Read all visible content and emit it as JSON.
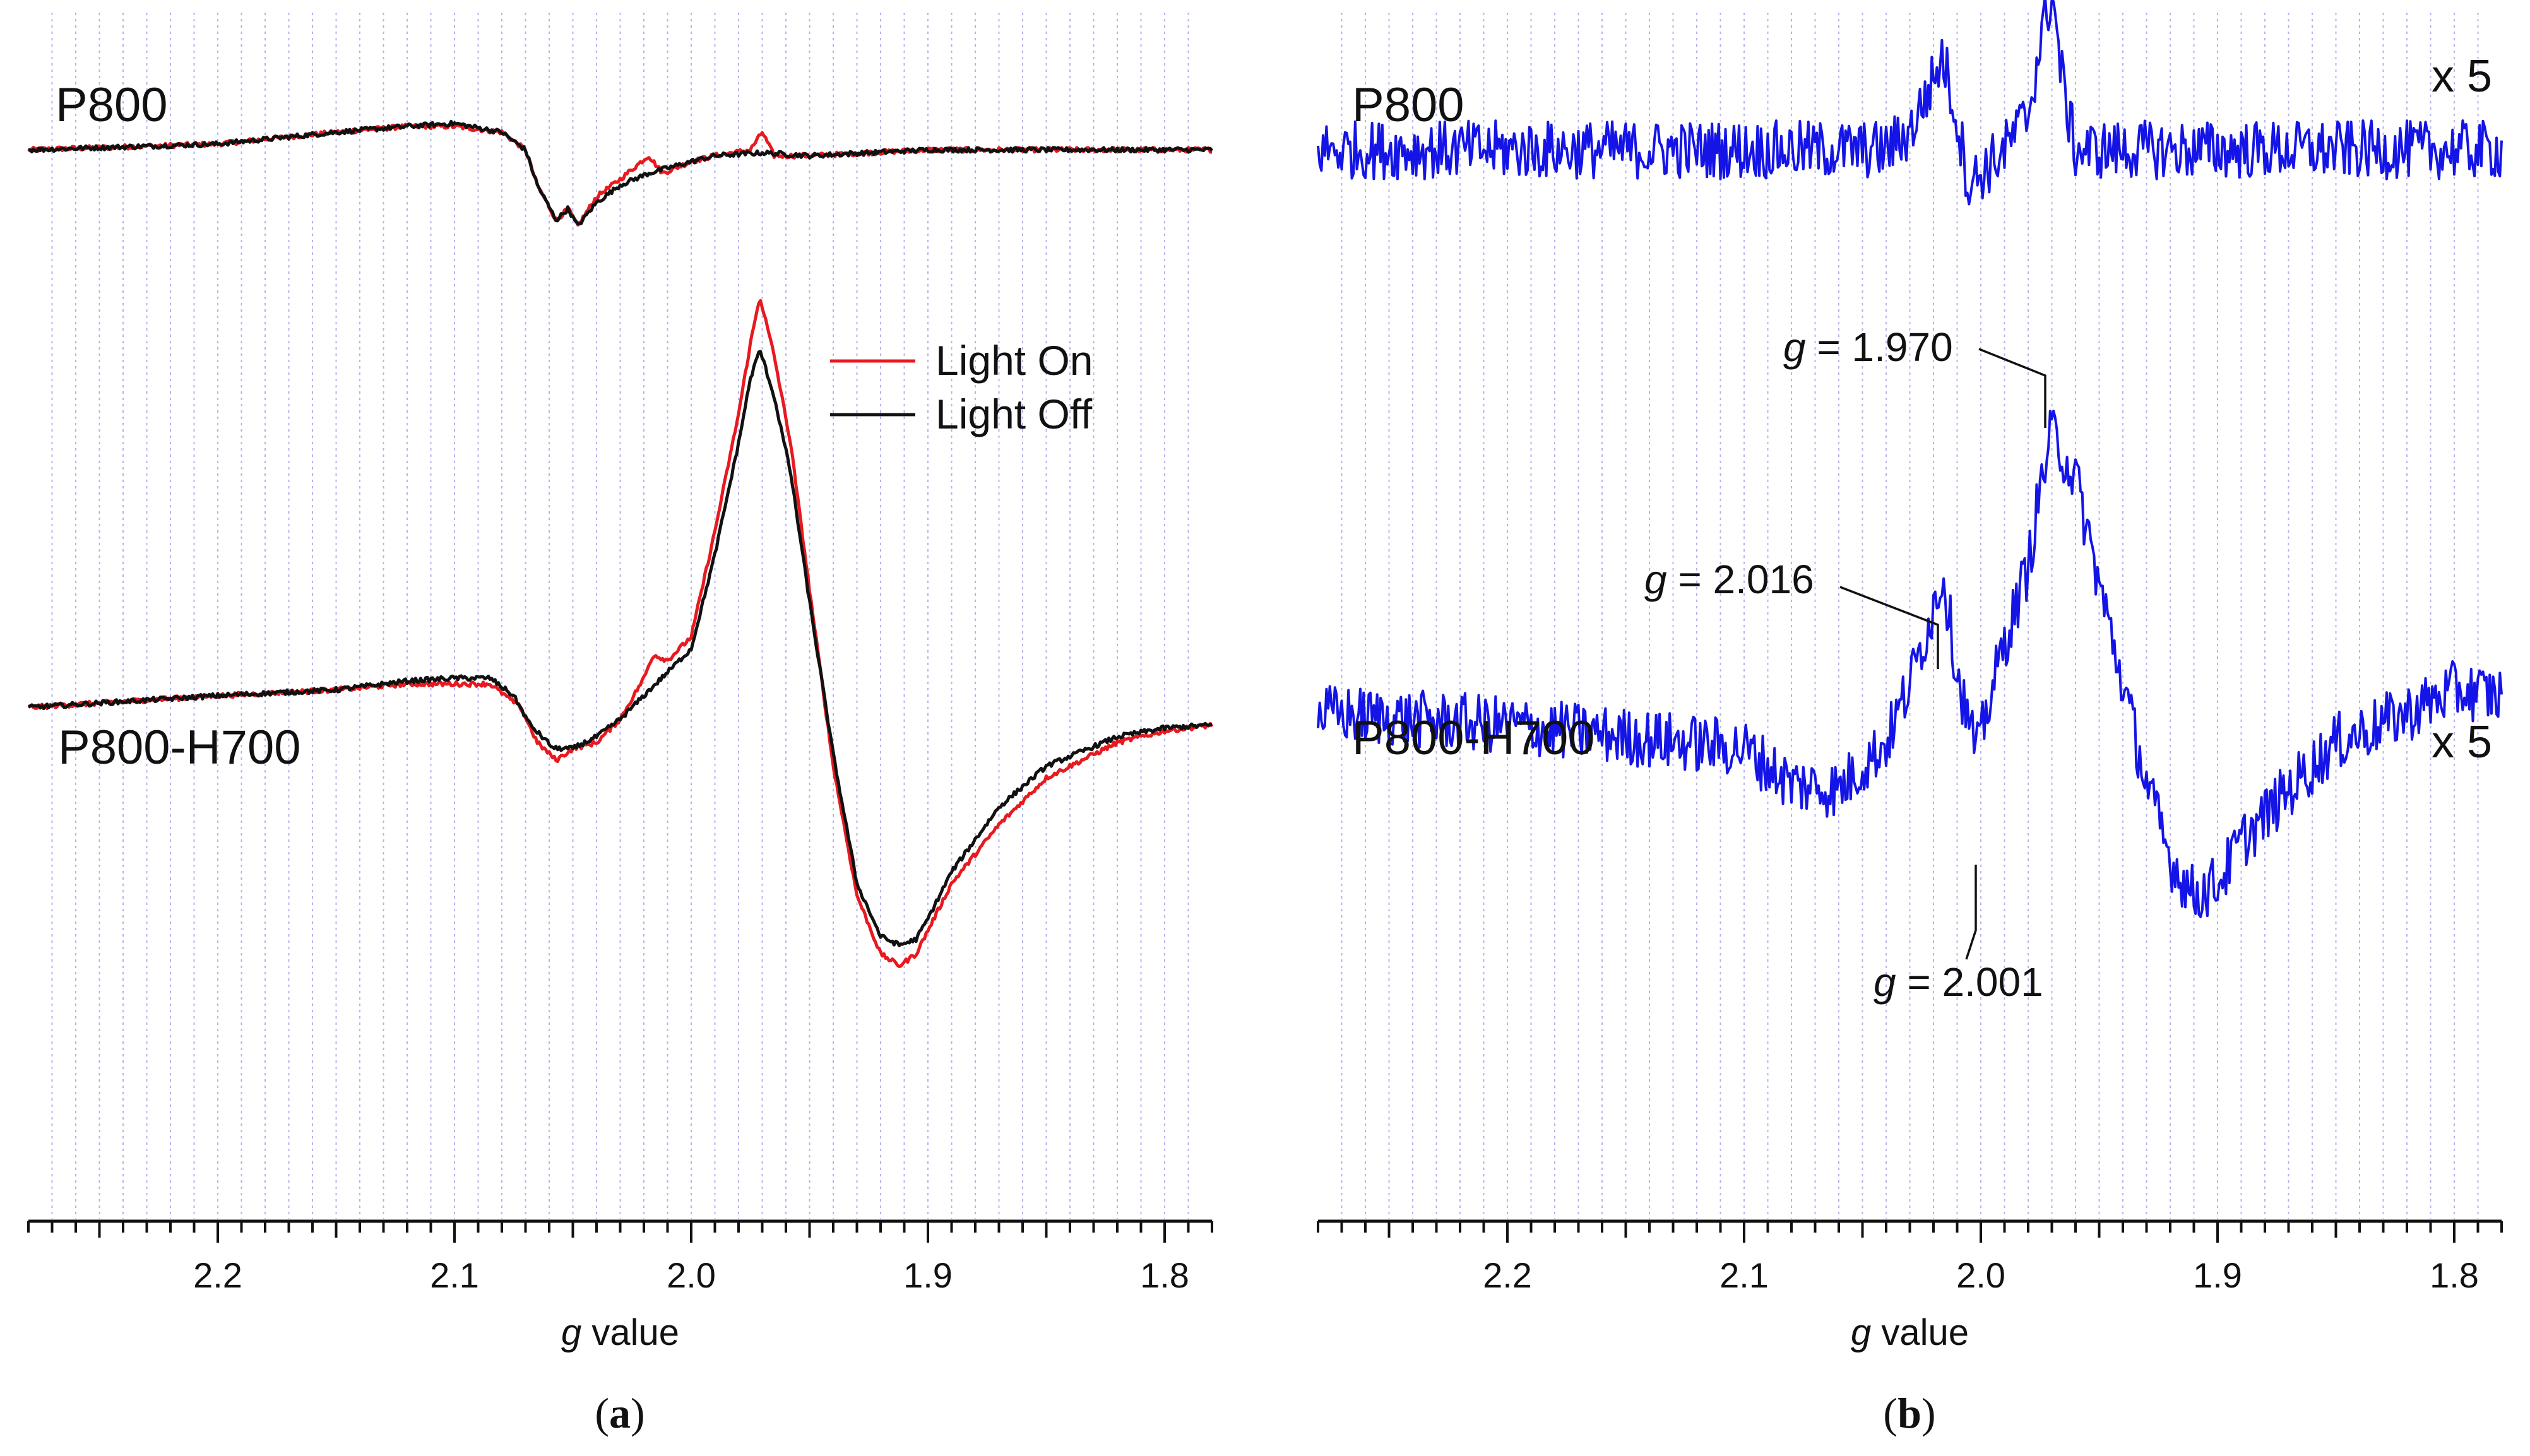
{
  "chart_data": [
    {
      "panel_id": "a",
      "type": "line",
      "xlabel_italic": "g",
      "xlabel_rest": " value",
      "xlim": [
        2.28,
        1.78
      ],
      "x_reversed": true,
      "xticks": [
        2.2,
        2.1,
        2.0,
        1.9,
        1.8
      ],
      "xtick_labels": [
        "2.2",
        "2.1",
        "2.0",
        "1.9",
        "1.8"
      ],
      "minor_tick_step": 0.01,
      "gridlines": "dotted vertical at every 0.01",
      "y_units": "arbitrary (stacked traces)",
      "ylim": [
        -1.0,
        1.0
      ],
      "legend_position": "center-right, below top trace",
      "legend": [
        {
          "label": "Light On",
          "color": "#e8191f"
        },
        {
          "label": "Light Off",
          "color": "#111111"
        }
      ],
      "trace_labels": [
        {
          "key": "top",
          "text": "P800"
        },
        {
          "key": "bottom",
          "text": "P800-H700"
        }
      ],
      "series": [
        {
          "name": "Light On",
          "group": "top",
          "color": "#e8191f",
          "offset": 0.82,
          "points": [
            [
              2.28,
              0.0
            ],
            [
              2.2,
              0.01
            ],
            [
              2.15,
              0.03
            ],
            [
              2.12,
              0.04
            ],
            [
              2.1,
              0.04
            ],
            [
              2.08,
              0.03
            ],
            [
              2.07,
              0.0
            ],
            [
              2.065,
              -0.06
            ],
            [
              2.057,
              -0.12
            ],
            [
              2.052,
              -0.1
            ],
            [
              2.048,
              -0.13
            ],
            [
              2.04,
              -0.08
            ],
            [
              2.03,
              -0.05
            ],
            [
              2.018,
              -0.01
            ],
            [
              2.012,
              -0.04
            ],
            [
              2.0,
              -0.02
            ],
            [
              1.99,
              -0.01
            ],
            [
              1.975,
              -0.0
            ],
            [
              1.97,
              0.03
            ],
            [
              1.965,
              -0.01
            ],
            [
              1.95,
              -0.01
            ],
            [
              1.9,
              0.0
            ],
            [
              1.85,
              0.0
            ],
            [
              1.78,
              0.0
            ]
          ]
        },
        {
          "name": "Light Off",
          "group": "top",
          "color": "#111111",
          "offset": 0.82,
          "points": [
            [
              2.28,
              0.0
            ],
            [
              2.2,
              0.01
            ],
            [
              2.15,
              0.03
            ],
            [
              2.12,
              0.04
            ],
            [
              2.1,
              0.045
            ],
            [
              2.08,
              0.03
            ],
            [
              2.07,
              0.0
            ],
            [
              2.065,
              -0.06
            ],
            [
              2.057,
              -0.12
            ],
            [
              2.052,
              -0.1
            ],
            [
              2.048,
              -0.13
            ],
            [
              2.04,
              -0.09
            ],
            [
              2.03,
              -0.06
            ],
            [
              2.018,
              -0.04
            ],
            [
              2.0,
              -0.02
            ],
            [
              1.99,
              -0.01
            ],
            [
              1.97,
              -0.005
            ],
            [
              1.95,
              -0.01
            ],
            [
              1.9,
              0.0
            ],
            [
              1.85,
              0.0
            ],
            [
              1.78,
              0.0
            ]
          ]
        },
        {
          "name": "Light On",
          "group": "bottom",
          "color": "#e8191f",
          "offset": -0.13,
          "points": [
            [
              2.28,
              0.0
            ],
            [
              2.2,
              0.02
            ],
            [
              2.15,
              0.03
            ],
            [
              2.12,
              0.04
            ],
            [
              2.1,
              0.04
            ],
            [
              2.085,
              0.04
            ],
            [
              2.072,
              0.0
            ],
            [
              2.065,
              -0.06
            ],
            [
              2.057,
              -0.09
            ],
            [
              2.05,
              -0.07
            ],
            [
              2.04,
              -0.06
            ],
            [
              2.03,
              -0.02
            ],
            [
              2.02,
              0.05
            ],
            [
              2.016,
              0.09
            ],
            [
              2.01,
              0.08
            ],
            [
              2.0,
              0.12
            ],
            [
              1.99,
              0.3
            ],
            [
              1.98,
              0.5
            ],
            [
              1.975,
              0.62
            ],
            [
              1.971,
              0.7
            ],
            [
              1.965,
              0.6
            ],
            [
              1.958,
              0.45
            ],
            [
              1.95,
              0.2
            ],
            [
              1.94,
              -0.1
            ],
            [
              1.93,
              -0.32
            ],
            [
              1.92,
              -0.42
            ],
            [
              1.912,
              -0.44
            ],
            [
              1.905,
              -0.42
            ],
            [
              1.9,
              -0.38
            ],
            [
              1.89,
              -0.3
            ],
            [
              1.87,
              -0.2
            ],
            [
              1.85,
              -0.12
            ],
            [
              1.82,
              -0.06
            ],
            [
              1.8,
              -0.04
            ],
            [
              1.78,
              -0.03
            ]
          ]
        },
        {
          "name": "Light Off",
          "group": "bottom",
          "color": "#111111",
          "offset": -0.13,
          "points": [
            [
              2.28,
              0.0
            ],
            [
              2.2,
              0.02
            ],
            [
              2.15,
              0.03
            ],
            [
              2.12,
              0.045
            ],
            [
              2.1,
              0.05
            ],
            [
              2.085,
              0.05
            ],
            [
              2.075,
              0.02
            ],
            [
              2.068,
              -0.03
            ],
            [
              2.058,
              -0.07
            ],
            [
              2.05,
              -0.07
            ],
            [
              2.04,
              -0.05
            ],
            [
              2.03,
              -0.02
            ],
            [
              2.02,
              0.02
            ],
            [
              2.01,
              0.06
            ],
            [
              2.0,
              0.1
            ],
            [
              1.99,
              0.26
            ],
            [
              1.98,
              0.45
            ],
            [
              1.975,
              0.56
            ],
            [
              1.971,
              0.61
            ],
            [
              1.965,
              0.53
            ],
            [
              1.958,
              0.4
            ],
            [
              1.95,
              0.18
            ],
            [
              1.94,
              -0.08
            ],
            [
              1.93,
              -0.3
            ],
            [
              1.92,
              -0.39
            ],
            [
              1.912,
              -0.405
            ],
            [
              1.905,
              -0.395
            ],
            [
              1.9,
              -0.36
            ],
            [
              1.89,
              -0.28
            ],
            [
              1.87,
              -0.17
            ],
            [
              1.85,
              -0.1
            ],
            [
              1.82,
              -0.05
            ],
            [
              1.8,
              -0.035
            ],
            [
              1.78,
              -0.03
            ]
          ]
        }
      ]
    },
    {
      "panel_id": "b",
      "type": "line",
      "xlabel_italic": "g",
      "xlabel_rest": " value",
      "xlim": [
        2.28,
        1.78
      ],
      "x_reversed": true,
      "xticks": [
        2.2,
        2.1,
        2.0,
        1.9,
        1.8
      ],
      "xtick_labels": [
        "2.2",
        "2.1",
        "2.0",
        "1.9",
        "1.8"
      ],
      "minor_tick_step": 0.01,
      "gridlines": "dotted vertical at every 0.01",
      "y_units": "arbitrary (stacked traces, noisy difference spectra)",
      "ylim": [
        -1.0,
        1.0
      ],
      "trace_labels": [
        {
          "key": "top",
          "text": "P800"
        },
        {
          "key": "bottom",
          "text": "P800-H700"
        }
      ],
      "scale_labels": [
        "x 5",
        "x 5"
      ],
      "annotations": [
        {
          "g_italic": "g",
          "text": " = 1.970",
          "at_g": 1.97
        },
        {
          "g_italic": "g",
          "text": " = 2.016",
          "at_g": 2.016
        },
        {
          "g_italic": "g",
          "text": " = 2.001",
          "at_g": 2.001
        }
      ],
      "series": [
        {
          "name": "P800 difference (x5)",
          "group": "top",
          "color": "#1414e6",
          "offset": 0.82,
          "noise": 0.05,
          "points": [
            [
              2.28,
              0.0
            ],
            [
              2.1,
              0.0
            ],
            [
              2.04,
              0.0
            ],
            [
              2.03,
              0.03
            ],
            [
              2.02,
              0.12
            ],
            [
              2.016,
              0.16
            ],
            [
              2.01,
              0.05
            ],
            [
              2.005,
              -0.06
            ],
            [
              2.0,
              -0.04
            ],
            [
              1.99,
              0.0
            ],
            [
              1.98,
              0.06
            ],
            [
              1.975,
              0.18
            ],
            [
              1.97,
              0.27
            ],
            [
              1.965,
              0.1
            ],
            [
              1.96,
              0.0
            ],
            [
              1.9,
              0.0
            ],
            [
              1.78,
              0.0
            ]
          ]
        },
        {
          "name": "P800-H700 difference (x5)",
          "group": "bottom",
          "color": "#1414e6",
          "offset": -0.14,
          "noise": 0.05,
          "points": [
            [
              2.28,
              0.0
            ],
            [
              2.2,
              -0.02
            ],
            [
              2.15,
              -0.04
            ],
            [
              2.1,
              -0.06
            ],
            [
              2.08,
              -0.12
            ],
            [
              2.06,
              -0.13
            ],
            [
              2.05,
              -0.09
            ],
            [
              2.04,
              -0.05
            ],
            [
              2.03,
              0.05
            ],
            [
              2.02,
              0.18
            ],
            [
              2.016,
              0.24
            ],
            [
              2.01,
              0.07
            ],
            [
              2.005,
              -0.02
            ],
            [
              2.001,
              -0.07
            ],
            [
              1.998,
              0.0
            ],
            [
              1.99,
              0.12
            ],
            [
              1.98,
              0.25
            ],
            [
              1.975,
              0.38
            ],
            [
              1.97,
              0.48
            ],
            [
              1.96,
              0.4
            ],
            [
              1.95,
              0.22
            ],
            [
              1.94,
              0.05
            ],
            [
              1.93,
              -0.12
            ],
            [
              1.92,
              -0.25
            ],
            [
              1.91,
              -0.31
            ],
            [
              1.9,
              -0.29
            ],
            [
              1.89,
              -0.22
            ],
            [
              1.87,
              -0.13
            ],
            [
              1.85,
              -0.05
            ],
            [
              1.82,
              0.0
            ],
            [
              1.8,
              0.04
            ],
            [
              1.78,
              0.03
            ]
          ]
        }
      ]
    }
  ]
}
